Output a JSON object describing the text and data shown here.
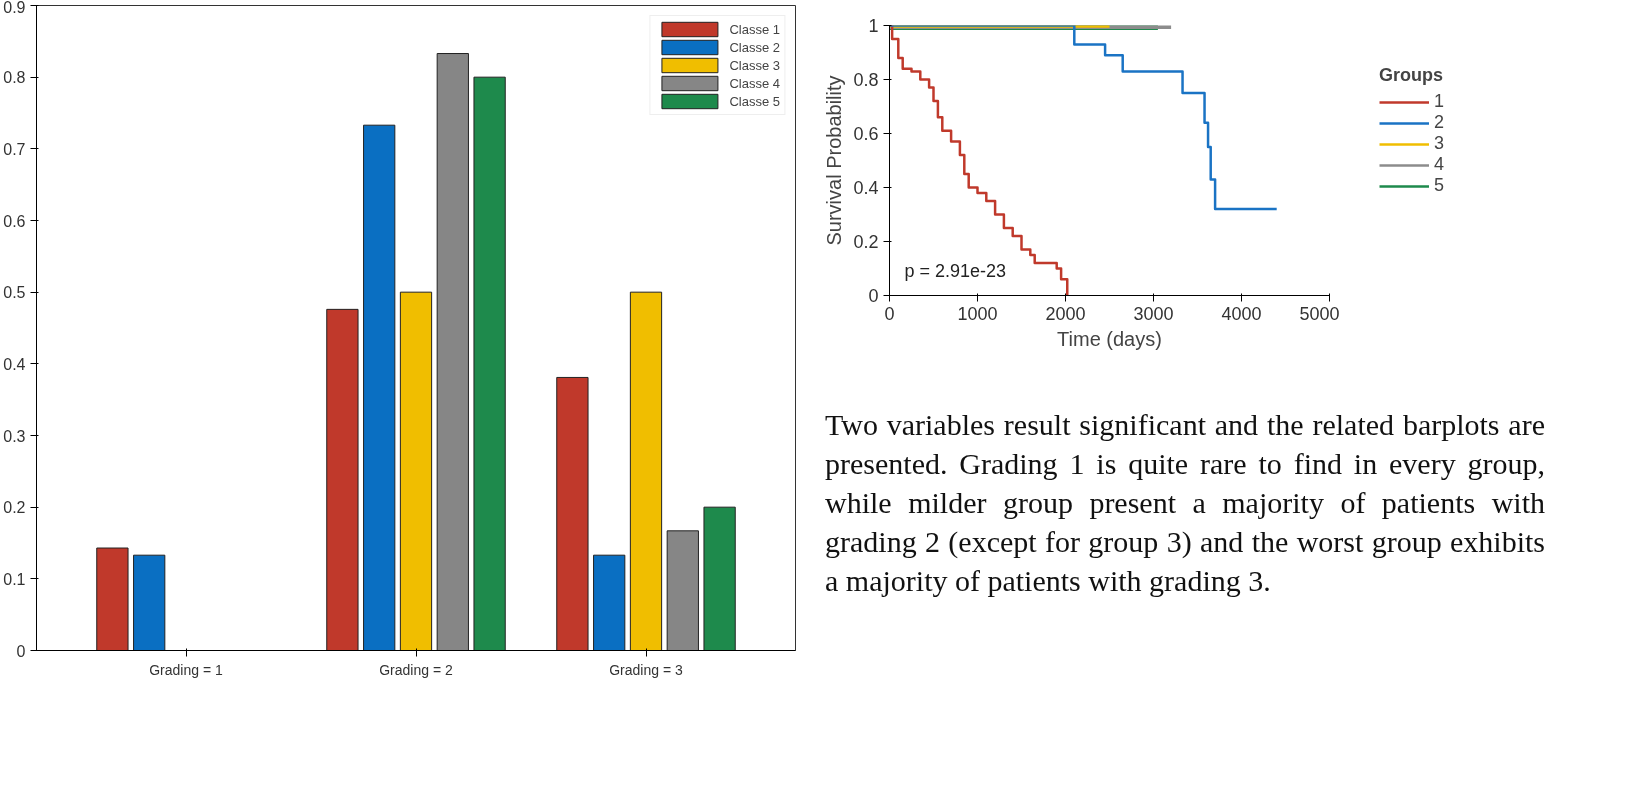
{
  "chart_data": [
    {
      "type": "bar",
      "categories": [
        "Grading = 1",
        "Grading = 2",
        "Grading = 3"
      ],
      "ylim": [
        0,
        0.9
      ],
      "yticks": [
        0,
        0.1,
        0.2,
        0.3,
        0.4,
        0.5,
        0.6,
        0.7,
        0.8,
        0.9
      ],
      "grid": false,
      "legend": "top right",
      "series": [
        {
          "name": "Classe 1",
          "color": "#c0392b",
          "values": [
            0.143,
            0.476,
            0.381
          ]
        },
        {
          "name": "Classe 2",
          "color": "#0a6fc2",
          "values": [
            0.133,
            0.733,
            0.133
          ]
        },
        {
          "name": "Classe 3",
          "color": "#f0be00",
          "values": [
            null,
            0.5,
            0.5
          ]
        },
        {
          "name": "Classe 4",
          "color": "#868686",
          "values": [
            null,
            0.833,
            0.167
          ]
        },
        {
          "name": "Classe 5",
          "color": "#1e8a4c",
          "values": [
            null,
            0.8,
            0.2
          ]
        }
      ]
    },
    {
      "type": "step",
      "xlabel": "Time (days)",
      "ylabel": "Survival Probability",
      "legend_title": "Groups",
      "legend": "right",
      "grid": false,
      "marker": "none",
      "xlim": [
        0,
        5000
      ],
      "xticks": [
        0,
        1000,
        2000,
        3000,
        4000,
        5000
      ],
      "ylim": [
        0,
        1
      ],
      "yticks": [
        0,
        0.2,
        0.4,
        0.6,
        0.8,
        1
      ],
      "annotations": [
        {
          "text": "p = 2.91e-23"
        }
      ],
      "series": [
        {
          "name": "1",
          "color": "#c0392b",
          "x": [
            0,
            30,
            100,
            150,
            250,
            350,
            450,
            500,
            550,
            600,
            700,
            800,
            850,
            900,
            1000,
            1100,
            1200,
            1300,
            1400,
            1500,
            1600,
            1650,
            1900,
            1950,
            2020
          ],
          "values": [
            1,
            0.95,
            0.88,
            0.84,
            0.83,
            0.8,
            0.77,
            0.72,
            0.66,
            0.61,
            0.57,
            0.52,
            0.45,
            0.4,
            0.38,
            0.35,
            0.3,
            0.25,
            0.22,
            0.17,
            0.15,
            0.12,
            0.1,
            0.06,
            0
          ]
        },
        {
          "name": "2",
          "color": "#1a73c4",
          "x": [
            0,
            2100,
            2450,
            2650,
            3330,
            3580,
            3620,
            3650,
            3700,
            4400
          ],
          "values": [
            1,
            0.93,
            0.89,
            0.83,
            0.75,
            0.64,
            0.55,
            0.43,
            0.32,
            0.32
          ]
        },
        {
          "name": "3",
          "color": "#f0be00",
          "x": [
            0,
            2500
          ],
          "values": [
            1,
            1
          ]
        },
        {
          "name": "4",
          "color": "#8c8c8c",
          "x": [
            0,
            3200
          ],
          "values": [
            1,
            1
          ]
        },
        {
          "name": "5",
          "color": "#1e8a4c",
          "x": [
            0,
            3050
          ],
          "values": [
            1,
            1
          ]
        }
      ]
    },
    {
      "type": "other",
      "annotations": [
        "Two variables result significant and the related barplots are presented. Grading 1 is quite rare to find in every group, while milder group present a majority of patients with grading 2 (except for group 3) and the worst group exhibits a majority of patients with grading 3."
      ]
    }
  ]
}
